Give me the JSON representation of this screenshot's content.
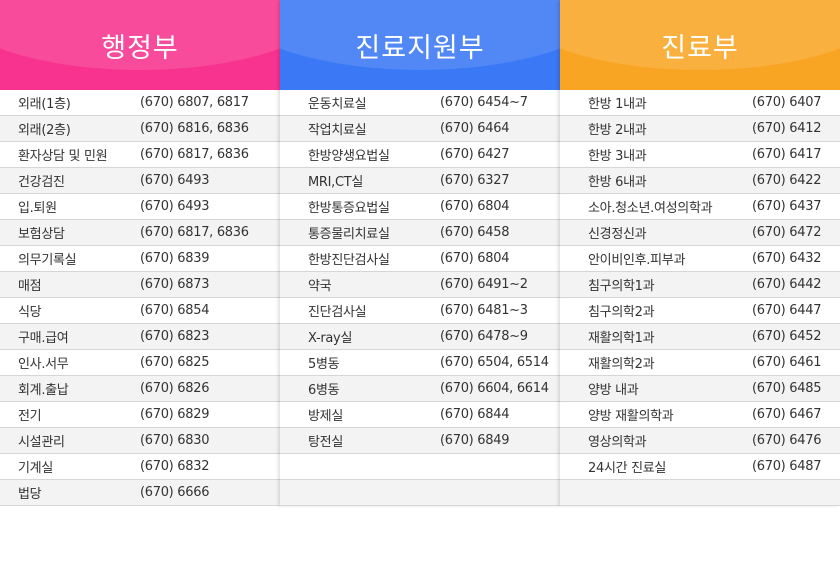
{
  "colors": {
    "admin": "#f7338f",
    "support": "#3a78f5",
    "clinic": "#f9a524"
  },
  "columns": [
    {
      "title": "행정부",
      "rows": [
        [
          "외래(1층)",
          "(670) 6807, 6817"
        ],
        [
          "외래(2층)",
          "(670) 6816, 6836"
        ],
        [
          "환자상담 및 민원",
          "(670) 6817, 6836"
        ],
        [
          "건강검진",
          "(670) 6493"
        ],
        [
          "입.퇴원",
          "(670) 6493"
        ],
        [
          "보험상담",
          "(670) 6817, 6836"
        ],
        [
          "의무기록실",
          "(670) 6839"
        ],
        [
          "매점",
          "(670) 6873"
        ],
        [
          "식당",
          "(670) 6854"
        ],
        [
          "구매.급여",
          "(670) 6823"
        ],
        [
          "인사.서무",
          "(670) 6825"
        ],
        [
          "회계.출납",
          "(670) 6826"
        ],
        [
          "전기",
          "(670) 6829"
        ],
        [
          "시설관리",
          "(670) 6830"
        ],
        [
          "기계실",
          "(670) 6832"
        ],
        [
          "법당",
          "(670) 6666"
        ]
      ]
    },
    {
      "title": "진료지원부",
      "rows": [
        [
          "운동치료실",
          "(670) 6454~7"
        ],
        [
          "작업치료실",
          "(670) 6464"
        ],
        [
          "한방양생요법실",
          "(670) 6427"
        ],
        [
          "MRI,CT실",
          "(670) 6327"
        ],
        [
          "한방통증요법실",
          "(670) 6804"
        ],
        [
          "통증물리치료실",
          "(670) 6458"
        ],
        [
          "한방진단검사실",
          "(670) 6804"
        ],
        [
          "약국",
          "(670) 6491~2"
        ],
        [
          "진단검사실",
          "(670) 6481~3"
        ],
        [
          "X-ray실",
          "(670) 6478~9"
        ],
        [
          "5병동",
          "(670) 6504, 6514"
        ],
        [
          "6병동",
          "(670) 6604, 6614"
        ],
        [
          "방제실",
          "(670) 6844"
        ],
        [
          "탕전실",
          "(670) 6849"
        ],
        [
          "",
          ""
        ],
        [
          "",
          ""
        ]
      ]
    },
    {
      "title": "진료부",
      "rows": [
        [
          "한방 1내과",
          "(670) 6407"
        ],
        [
          "한방 2내과",
          "(670) 6412"
        ],
        [
          "한방 3내과",
          "(670) 6417"
        ],
        [
          "한방 6내과",
          "(670) 6422"
        ],
        [
          "소아.청소년.여성의학과",
          "(670) 6437"
        ],
        [
          "신경정신과",
          "(670) 6472"
        ],
        [
          "안이비인후.피부과",
          "(670) 6432"
        ],
        [
          "침구의학1과",
          "(670) 6442"
        ],
        [
          "침구의학2과",
          "(670) 6447"
        ],
        [
          "재활의학1과",
          "(670) 6452"
        ],
        [
          "재활의학2과",
          "(670) 6461"
        ],
        [
          "양방 내과",
          "(670) 6485"
        ],
        [
          "양방 재활의학과",
          "(670) 6467"
        ],
        [
          "영상의학과",
          "(670) 6476"
        ],
        [
          "24시간 진료실",
          "(670) 6487"
        ],
        [
          "",
          ""
        ]
      ]
    }
  ]
}
